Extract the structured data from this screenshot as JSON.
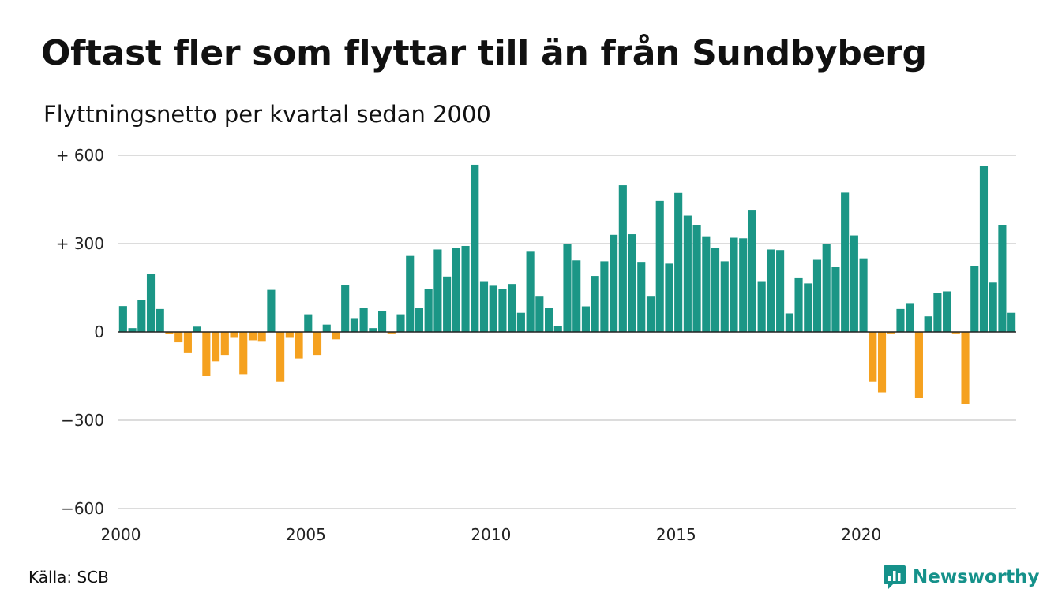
{
  "header": {
    "title": "Oftast fler som flyttar till än från Sundbyberg",
    "subtitle": "Flyttningsnetto per kvartal sedan 2000"
  },
  "footer": {
    "source": "Källa: SCB",
    "brand": "Newsworthy"
  },
  "colors": {
    "positive": "#1b9686",
    "negative": "#f5a11f",
    "brand": "#15918a"
  },
  "icons": {
    "brand": "bar-chart-bubble-icon"
  },
  "chart_data": {
    "type": "bar",
    "title": "Oftast fler som flyttar till än från Sundbyberg",
    "subtitle": "Flyttningsnetto per kvartal sedan 2000",
    "x_start_year": 2000,
    "periods_per_year": 4,
    "x_ticks": [
      "2000",
      "2005",
      "2010",
      "2015",
      "2020"
    ],
    "y_ticks": [
      {
        "value": 600,
        "label": "+ 600"
      },
      {
        "value": 300,
        "label": "+ 300"
      },
      {
        "value": 0,
        "label": "0"
      },
      {
        "value": -300,
        "label": "−300"
      },
      {
        "value": -600,
        "label": "−600"
      }
    ],
    "ylim": [
      -600,
      600
    ],
    "grid": true,
    "values": [
      88,
      13,
      108,
      198,
      78,
      -8,
      -35,
      -72,
      18,
      -150,
      -100,
      -78,
      -20,
      -143,
      -28,
      -33,
      143,
      -168,
      -20,
      -90,
      60,
      -78,
      25,
      -25,
      158,
      47,
      82,
      13,
      72,
      -5,
      60,
      258,
      82,
      145,
      280,
      188,
      285,
      292,
      568,
      170,
      157,
      145,
      163,
      65,
      275,
      120,
      82,
      20,
      300,
      243,
      87,
      190,
      240,
      330,
      498,
      332,
      238,
      120,
      445,
      232,
      472,
      395,
      362,
      325,
      285,
      240,
      320,
      318,
      415,
      170,
      280,
      278,
      63,
      185,
      165,
      245,
      298,
      220,
      473,
      328,
      250,
      -168,
      -205,
      -5,
      78,
      98,
      -225,
      53,
      133,
      138,
      -5,
      -245,
      225,
      565,
      168,
      362,
      65
    ]
  }
}
